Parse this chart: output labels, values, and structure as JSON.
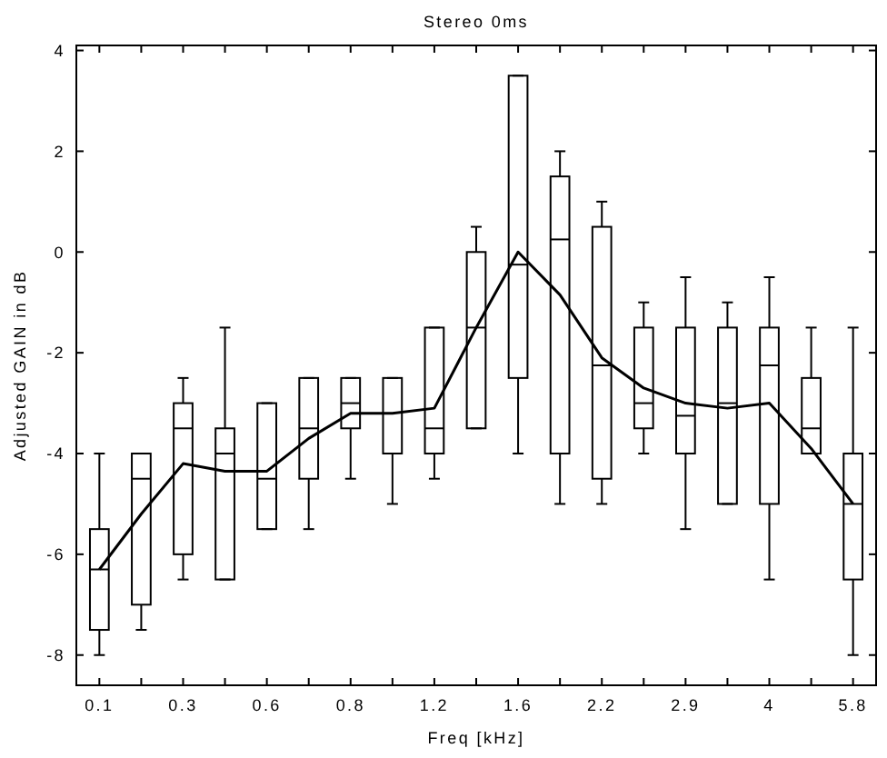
{
  "chart_data": {
    "type": "box",
    "title": "Stereo 0ms",
    "xlabel": "Freq [kHz]",
    "ylabel": "Adjusted GAIN in dB",
    "categories": [
      "0.1",
      null,
      "0.3",
      null,
      "0.6",
      null,
      "0.8",
      null,
      "1.2",
      null,
      "1.6",
      null,
      "2.2",
      null,
      "2.9",
      null,
      "4",
      null,
      "5.8"
    ],
    "ylim": [
      -8.6,
      4.1
    ],
    "yticks": [
      -8,
      -6,
      -4,
      -2,
      0,
      2,
      4
    ],
    "grid": false,
    "series": [
      {
        "color": "#000000",
        "boxes": [
          {
            "low": -8,
            "q1": -7.5,
            "median": -6.3,
            "q3": -5.5,
            "high": -4
          },
          {
            "low": -7.5,
            "q1": -7,
            "median": -4.5,
            "q3": -4,
            "high": -4
          },
          {
            "low": -6.5,
            "q1": -6,
            "median": -3.5,
            "q3": -3,
            "high": -2.5
          },
          {
            "low": -6.5,
            "q1": -6.5,
            "median": -4,
            "q3": -3.5,
            "high": -1.5
          },
          {
            "low": -5.5,
            "q1": -5.5,
            "median": -4.5,
            "q3": -3,
            "high": -3
          },
          {
            "low": -5.5,
            "q1": -4.5,
            "median": -3.5,
            "q3": -2.5,
            "high": -2.5
          },
          {
            "low": -4.5,
            "q1": -3.5,
            "median": -3,
            "q3": -2.5,
            "high": -2.5
          },
          {
            "low": -5,
            "q1": -4,
            "median": -4,
            "q3": -2.5,
            "high": -2.5
          },
          {
            "low": -4.5,
            "q1": -4,
            "median": -3.5,
            "q3": -1.5,
            "high": -1.5
          },
          {
            "low": -3.5,
            "q1": -3.5,
            "median": -1.5,
            "q3": 0,
            "high": 0.5
          },
          {
            "low": -4,
            "q1": -2.5,
            "median": -0.25,
            "q3": 3.5,
            "high": 3.5
          },
          {
            "low": -5,
            "q1": -4,
            "median": 0.25,
            "q3": 1.5,
            "high": 2
          },
          {
            "low": -5,
            "q1": -4.5,
            "median": -2.25,
            "q3": 0.5,
            "high": 1
          },
          {
            "low": -4,
            "q1": -3.5,
            "median": -3,
            "q3": -1.5,
            "high": -1
          },
          {
            "low": -5.5,
            "q1": -4,
            "median": -3.25,
            "q3": -1.5,
            "high": -0.5
          },
          {
            "low": -5,
            "q1": -5,
            "median": -3,
            "q3": -1.5,
            "high": -1
          },
          {
            "low": -6.5,
            "q1": -5,
            "median": -2.25,
            "q3": -1.5,
            "high": -0.5
          },
          {
            "low": -4,
            "q1": -4,
            "median": -3.5,
            "q3": -2.5,
            "high": -1.5
          },
          {
            "low": -8,
            "q1": -6.5,
            "median": -5,
            "q3": -4,
            "high": -1.5
          }
        ]
      },
      {
        "type": "line",
        "color": "#000000",
        "marker": "none",
        "line_style": "solid",
        "values": [
          -6.3,
          -5.2,
          -4.2,
          -4.35,
          -4.35,
          -3.7,
          -3.2,
          -3.2,
          -3.1,
          -1.5,
          0,
          -0.85,
          -2.1,
          -2.7,
          -3,
          -3.1,
          -3,
          -3.9,
          -5
        ]
      }
    ]
  }
}
